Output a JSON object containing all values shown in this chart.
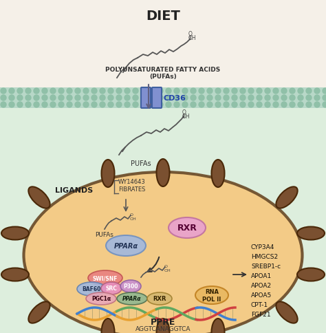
{
  "bg_top_color": "#f5f0e8",
  "bg_bottom_color": "#e8f0e8",
  "membrane_color": "#b8d8c8",
  "membrane_dots_color": "#90c0a8",
  "cell_fill_color": "#f5c880",
  "cell_edge_color": "#6b4c2a",
  "title_text": "DIET",
  "title_fontsize": 14,
  "title_fontweight": "bold",
  "pufa_label_top": "POLYUNSATURATED FATTY ACIDS\n(PUFAs)",
  "cd36_label": "CD36",
  "pufa_label_bottom": "PUFAs",
  "ligands_label": "LIGANDS",
  "wy_fibrates_label": "WY14643\nFIBRATES",
  "pufas_inner_label": "PUFAs",
  "ppara_label": "PPARα",
  "rxr_label_top": "RXR",
  "swi_snf_label": "SWI/SNF",
  "baf60_label": "BAF60",
  "src_label": "SRC",
  "p300_label": "P300",
  "pgc1a_label": "PGC1α",
  "ppara_label2": "PPARα",
  "rxr_label_bottom": "RXR",
  "rna_pol_label": "RNA\nPOL II",
  "ppre_label": "PPRE",
  "sequence_label": "AGGTCANAGGTCA",
  "genes_list": [
    "CYP3A4",
    "HMGCS2",
    "SREBP1-c",
    "APOA1",
    "APOA2",
    "APOA5",
    "CPT-1",
    "FGF21"
  ],
  "rxr_top_color": "#e8a0d0",
  "ppara_color": "#a0b8e0",
  "swi_snf_color": "#e88080",
  "baf60_color": "#a0b8e0",
  "src_color": "#e890c0",
  "p300_color": "#c890d0",
  "pgc1_color": "#e8a8b8",
  "ppara2_color": "#90b890",
  "rxr_bottom_color": "#d4b870",
  "rna_pol_color": "#e8b860",
  "cd36_color": "#8090d0",
  "arrow_color": "#606080",
  "dna_color1": "#c8a030",
  "dna_color2": "#60a060"
}
